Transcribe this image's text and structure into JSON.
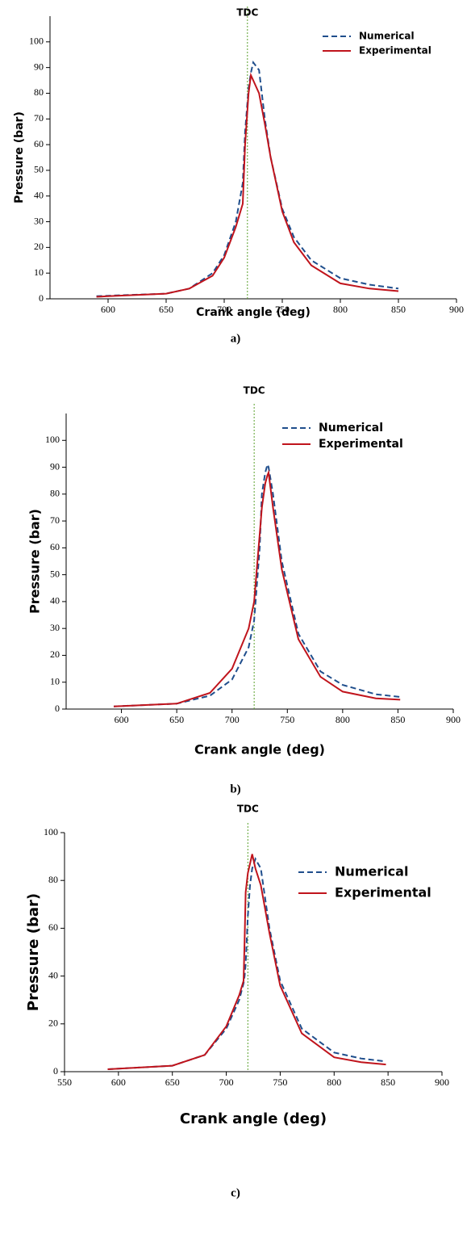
{
  "chart_data": [
    {
      "type": "line",
      "annotation": "TDC",
      "tdc": 720,
      "x_label": "Crank angle (deg)",
      "y_label": "Pressure (bar)",
      "caption": "a)",
      "x": [
        590,
        600,
        650,
        670,
        690,
        700,
        710,
        716,
        718,
        721,
        723,
        725,
        730,
        735,
        740,
        750,
        760,
        775,
        800,
        825,
        850
      ],
      "series": [
        {
          "name": "Numerical",
          "color": "#1f4e8c",
          "dash": true,
          "values": [
            1,
            1.2,
            2,
            4,
            10,
            17,
            30,
            45,
            65,
            82,
            88,
            92,
            89,
            70,
            55,
            35,
            24,
            15,
            8,
            5.5,
            4
          ]
        },
        {
          "name": "Experimental",
          "color": "#c0141c",
          "dash": false,
          "values": [
            0.8,
            1,
            2,
            4,
            9,
            16,
            28,
            37,
            60,
            80,
            87,
            85,
            80,
            68,
            55,
            34,
            22,
            13,
            6,
            4,
            3
          ]
        }
      ],
      "xlim": [
        550,
        900
      ],
      "xticks": [
        600,
        650,
        700,
        750,
        800,
        850,
        900
      ],
      "ylim": [
        0,
        110
      ],
      "yticks": [
        0,
        10,
        20,
        30,
        40,
        50,
        60,
        70,
        80,
        90,
        100
      ],
      "legend": "upper right"
    },
    {
      "type": "line",
      "annotation": "TDC",
      "tdc": 720,
      "x_label": "Crank angle (deg)",
      "y_label": "Pressure (bar)",
      "caption": "b)",
      "x": [
        593,
        650,
        680,
        700,
        715,
        720,
        725,
        727,
        730,
        732,
        733,
        737,
        745,
        760,
        780,
        800,
        830,
        852
      ],
      "series": [
        {
          "name": "Numerical",
          "color": "#1f4e8c",
          "dash": true,
          "values": [
            1,
            2,
            5,
            11,
            23,
            33,
            60,
            80,
            88,
            91,
            90,
            80,
            55,
            28,
            14,
            9,
            5.5,
            4.5
          ]
        },
        {
          "name": "Experimental",
          "color": "#c0141c",
          "dash": false,
          "values": [
            1,
            2,
            6,
            15,
            30,
            40,
            65,
            75,
            84,
            87,
            88,
            75,
            52,
            26,
            12,
            6.5,
            4,
            3.5
          ]
        }
      ],
      "xlim": [
        550,
        900
      ],
      "xticks": [
        600,
        650,
        700,
        750,
        800,
        850,
        900
      ],
      "ylim": [
        0,
        110
      ],
      "yticks": [
        0,
        10,
        20,
        30,
        40,
        50,
        60,
        70,
        80,
        90,
        100
      ],
      "legend": "upper right"
    },
    {
      "type": "line",
      "annotation": "TDC",
      "tdc": 720,
      "x_label": "Crank angle (deg)",
      "y_label": "Pressure (bar)",
      "caption": "c)",
      "x": [
        590,
        650,
        680,
        700,
        712,
        716,
        717,
        718,
        720,
        722,
        724,
        727,
        732,
        740,
        750,
        770,
        800,
        825,
        848
      ],
      "series": [
        {
          "name": "Numerical",
          "color": "#1f4e8c",
          "dash": true,
          "values": [
            1,
            2.5,
            7,
            18,
            30,
            37,
            40,
            45,
            65,
            78,
            85,
            89,
            85,
            60,
            38,
            18,
            8,
            5.5,
            4.3
          ]
        },
        {
          "name": "Experimental",
          "color": "#c0141c",
          "dash": false,
          "values": [
            1,
            2.5,
            7,
            19,
            32,
            38,
            55,
            75,
            83,
            87,
            91,
            85,
            78,
            58,
            36,
            16,
            6,
            4,
            3
          ]
        }
      ],
      "xlim": [
        550,
        900
      ],
      "xticks": [
        550,
        600,
        650,
        700,
        750,
        800,
        850,
        900
      ],
      "ylim": [
        0,
        100
      ],
      "yticks": [
        0,
        20,
        40,
        60,
        80,
        100
      ],
      "legend": "upper right"
    }
  ]
}
